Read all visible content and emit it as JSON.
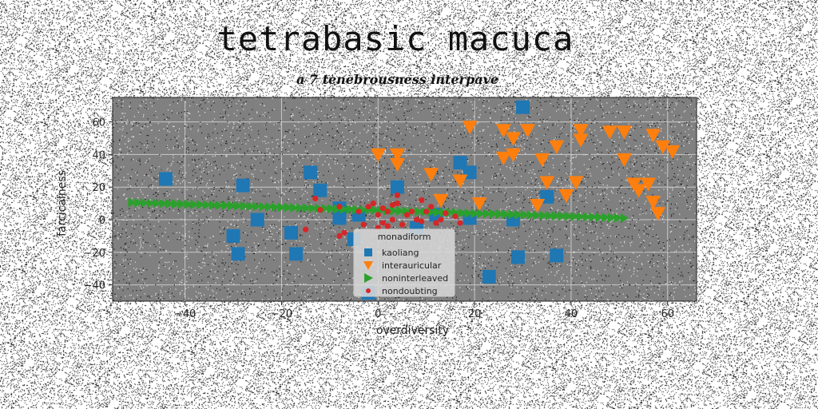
{
  "title": "tetrabasic macuca",
  "subtitle": "a 7 tenebrousness interpave",
  "colors": {
    "background": "#ffffff",
    "plot_bg": "#808080",
    "grid": "#c8c8c8",
    "blue": "#1f77b4",
    "orange": "#ff7f0e",
    "green": "#2ca02c",
    "red": "#d62728"
  },
  "chart_data": {
    "type": "scatter",
    "title": "tetrabasic macuca",
    "subtitle": "a 7 tenebrousness interpave",
    "xlabel": "overdiversity",
    "ylabel": "farcicalness",
    "xlim": [
      -55,
      66
    ],
    "ylim": [
      -50,
      75
    ],
    "xticks": [
      -40,
      -20,
      0,
      20,
      40,
      60
    ],
    "yticks": [
      -40,
      -20,
      0,
      20,
      40,
      60
    ],
    "xtick_labels": [
      "−40",
      "−20",
      "0",
      "20",
      "40",
      "60"
    ],
    "ytick_labels": [
      "−40",
      "−20",
      "0",
      "20",
      "40",
      "60"
    ],
    "grid": true,
    "legend": {
      "title": "monadiform",
      "placement": "lower-center"
    },
    "series": [
      {
        "name": "kaoliang",
        "marker": "square",
        "color": "#1f77b4",
        "points": [
          [
            -44,
            25
          ],
          [
            -28,
            21
          ],
          [
            -30,
            -10
          ],
          [
            -29,
            -21
          ],
          [
            -25,
            0
          ],
          [
            -18,
            -8
          ],
          [
            -17,
            -21
          ],
          [
            -14,
            29
          ],
          [
            -12,
            18
          ],
          [
            -8,
            7
          ],
          [
            -8,
            1
          ],
          [
            -5,
            -12
          ],
          [
            -2,
            -45
          ],
          [
            4,
            20
          ],
          [
            8,
            -5
          ],
          [
            12,
            3
          ],
          [
            17,
            35
          ],
          [
            19,
            29
          ],
          [
            19,
            1
          ],
          [
            23,
            -35
          ],
          [
            28,
            0
          ],
          [
            29,
            -23
          ],
          [
            30,
            69
          ],
          [
            35,
            14
          ],
          [
            37,
            -22
          ],
          [
            -4,
            3
          ]
        ]
      },
      {
        "name": "interauricular",
        "marker": "triangle_down",
        "color": "#ff7f0e",
        "points": [
          [
            0,
            40
          ],
          [
            4,
            40
          ],
          [
            4,
            34
          ],
          [
            11,
            28
          ],
          [
            13,
            12
          ],
          [
            19,
            57
          ],
          [
            17,
            24
          ],
          [
            21,
            10
          ],
          [
            26,
            55
          ],
          [
            26,
            38
          ],
          [
            28,
            50
          ],
          [
            28,
            40
          ],
          [
            31,
            55
          ],
          [
            34,
            37
          ],
          [
            35,
            23
          ],
          [
            33,
            9
          ],
          [
            37,
            45
          ],
          [
            39,
            15
          ],
          [
            41,
            23
          ],
          [
            42,
            55
          ],
          [
            42,
            49
          ],
          [
            48,
            54
          ],
          [
            51,
            54
          ],
          [
            51,
            37
          ],
          [
            53,
            22
          ],
          [
            54,
            18
          ],
          [
            56,
            22
          ],
          [
            57,
            11
          ],
          [
            57,
            52
          ],
          [
            58,
            4
          ],
          [
            59,
            45
          ],
          [
            61,
            42
          ]
        ]
      },
      {
        "name": "noninterleaved",
        "marker": "triangle_right",
        "color": "#2ca02c",
        "x_start": -51,
        "x_end": 51,
        "y_start": 10.5,
        "y_end": 1,
        "count": 80
      },
      {
        "name": "nondoubting",
        "marker": "circle",
        "color": "#d62728",
        "points": [
          [
            -13,
            13
          ],
          [
            -12,
            6
          ],
          [
            -15,
            -6
          ],
          [
            -8,
            8
          ],
          [
            -7,
            -8
          ],
          [
            -8,
            -10
          ],
          [
            -4,
            5
          ],
          [
            -3,
            -3
          ],
          [
            -2,
            8
          ],
          [
            -1,
            10
          ],
          [
            0,
            3
          ],
          [
            0,
            -5
          ],
          [
            1,
            7
          ],
          [
            2,
            5
          ],
          [
            2,
            -4
          ],
          [
            3,
            9
          ],
          [
            3,
            0
          ],
          [
            4,
            10
          ],
          [
            4,
            15
          ],
          [
            5,
            -3
          ],
          [
            6,
            3
          ],
          [
            7,
            5
          ],
          [
            8,
            0
          ],
          [
            9,
            12
          ],
          [
            9,
            -1
          ],
          [
            10,
            5
          ],
          [
            11,
            8
          ],
          [
            12,
            -2
          ],
          [
            13,
            0
          ],
          [
            14,
            4
          ],
          [
            16,
            2
          ],
          [
            17,
            -2
          ],
          [
            1,
            -2
          ]
        ]
      }
    ]
  }
}
